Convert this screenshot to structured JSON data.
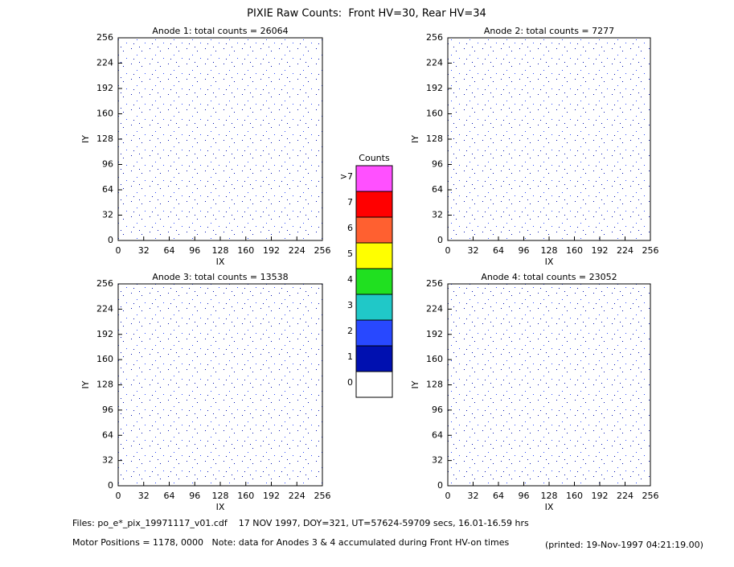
{
  "title": "PIXIE Raw Counts:  Front HV=30, Rear HV=34",
  "chart_data": [
    {
      "type": "heatmap",
      "title": "Anode 1: total counts = 26064",
      "xlabel": "IX",
      "ylabel": "IY",
      "xlim": [
        0,
        256
      ],
      "ylim": [
        0,
        256
      ],
      "xticks": [
        0,
        32,
        64,
        96,
        128,
        160,
        192,
        224,
        256
      ],
      "yticks": [
        0,
        32,
        64,
        96,
        128,
        160,
        192,
        224,
        256
      ]
    },
    {
      "type": "heatmap",
      "title": "Anode 2: total counts = 7277",
      "xlabel": "IX",
      "ylabel": "IY",
      "xlim": [
        0,
        256
      ],
      "ylim": [
        0,
        256
      ],
      "xticks": [
        0,
        32,
        64,
        96,
        128,
        160,
        192,
        224,
        256
      ],
      "yticks": [
        0,
        32,
        64,
        96,
        128,
        160,
        192,
        224,
        256
      ]
    },
    {
      "type": "heatmap",
      "title": "Anode 3: total counts = 13538",
      "xlabel": "IX",
      "ylabel": "IY",
      "xlim": [
        0,
        256
      ],
      "ylim": [
        0,
        256
      ],
      "xticks": [
        0,
        32,
        64,
        96,
        128,
        160,
        192,
        224,
        256
      ],
      "yticks": [
        0,
        32,
        64,
        96,
        128,
        160,
        192,
        224,
        256
      ]
    },
    {
      "type": "heatmap",
      "title": "Anode 4: total counts = 23052",
      "xlabel": "IX",
      "ylabel": "IY",
      "xlim": [
        0,
        256
      ],
      "ylim": [
        0,
        256
      ],
      "xticks": [
        0,
        32,
        64,
        96,
        128,
        160,
        192,
        224,
        256
      ],
      "yticks": [
        0,
        32,
        64,
        96,
        128,
        160,
        192,
        224,
        256
      ]
    }
  ],
  "colorbar": {
    "title": "Counts",
    "labels": [
      "0",
      "1",
      "2",
      "3",
      "4",
      "5",
      "6",
      "7",
      ">7"
    ],
    "colors": [
      "#ffffff",
      "#0010b0",
      "#2848ff",
      "#20c8c8",
      "#20e020",
      "#ffff00",
      "#ff6030",
      "#ff0000",
      "#ff50ff"
    ]
  },
  "footer": {
    "files": "Files: po_e*_pix_19971117_v01.cdf    17 NOV 1997, DOY=321, UT=57624-59709 secs, 16.01-16.59 hrs",
    "motor": "Motor Positions = 1178, 0000   Note: data for Anodes 3 & 4 accumulated during Front HV-on times",
    "printed": "(printed: 19-Nov-1997 04:21:19.00)"
  }
}
